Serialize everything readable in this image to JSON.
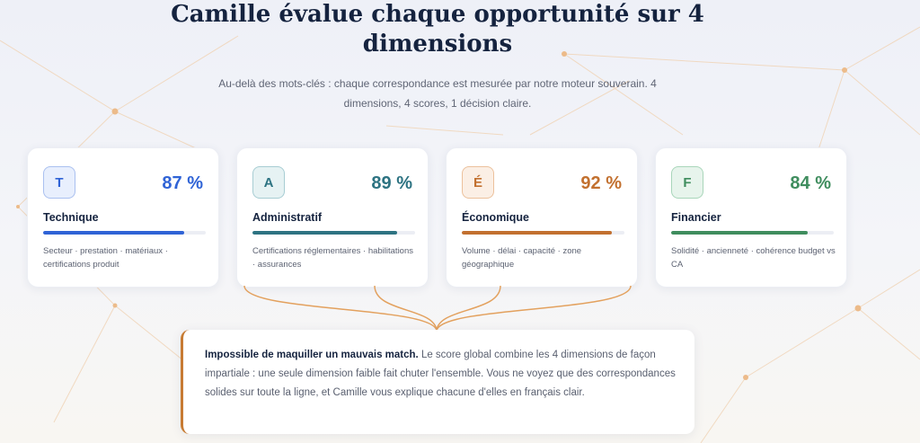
{
  "header": {
    "title": "Camille évalue chaque opportunité sur 4 dimensions",
    "subtitle": "Au-delà des mots-clés : chaque correspondance est mesurée par notre moteur souverain. 4 dimensions, 4 scores, 1 décision claire."
  },
  "cards": [
    {
      "letter": "T",
      "score_text": "87 %",
      "score": 87,
      "name": "Technique",
      "description": "Secteur · prestation · matériaux · certifications produit",
      "accent": "#2f63d6",
      "badge_bg": "#e8effd",
      "badge_border": "#aac0f0"
    },
    {
      "letter": "A",
      "score_text": "89 %",
      "score": 89,
      "name": "Administratif",
      "description": "Certifications réglementaires · habilitations · assurances",
      "accent": "#2d7382",
      "badge_bg": "#e6f2f3",
      "badge_border": "#a7cdd3"
    },
    {
      "letter": "É",
      "score_text": "92 %",
      "score": 92,
      "name": "Économique",
      "description": "Volume · délai · capacité · zone géographique",
      "accent": "#c2702f",
      "badge_bg": "#fbefe5",
      "badge_border": "#ecc19c"
    },
    {
      "letter": "F",
      "score_text": "84 %",
      "score": 84,
      "name": "Financier",
      "description": "Solidité · ancienneté · cohérence budget vs CA",
      "accent": "#3f8d5e",
      "badge_bg": "#e7f4ec",
      "badge_border": "#a9d6ba"
    }
  ],
  "callout": {
    "lead": "Impossible de maquiller un mauvais match.",
    "body": " Le score global combine les 4 dimensions de façon impartiale : une seule dimension faible fait chuter l'ensemble. Vous ne voyez que des correspondances solides sur toute la ligne, et Camille vous explique chacune d'elles en français clair."
  },
  "colors": {
    "title": "#15233f",
    "connector": "#e3a15e",
    "network": "#f0c89f"
  }
}
